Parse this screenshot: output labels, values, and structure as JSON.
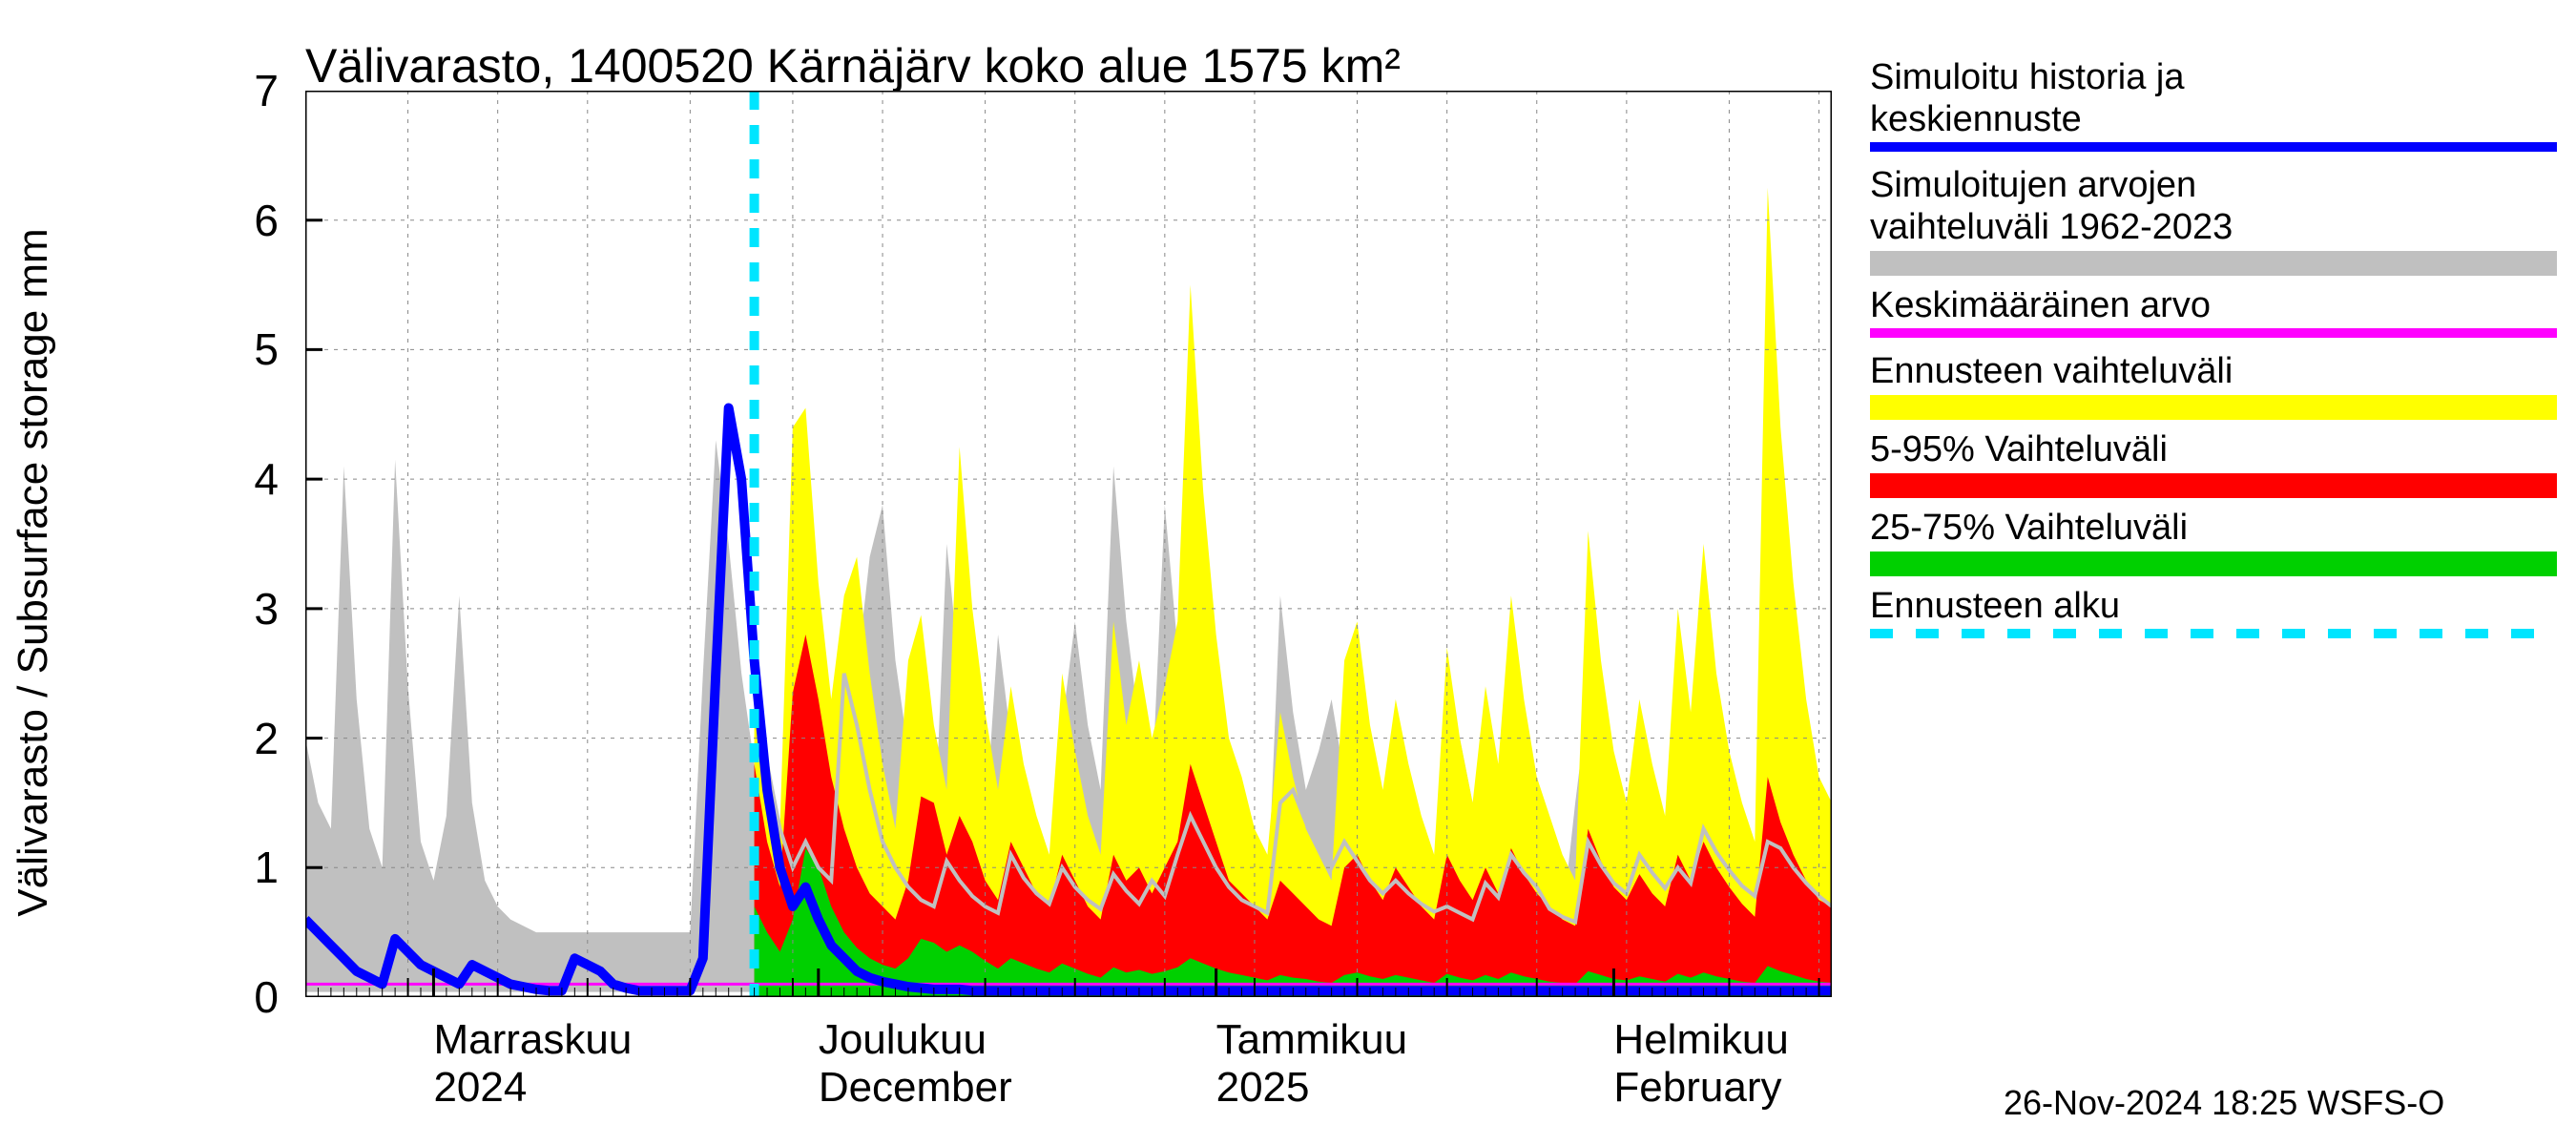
{
  "chart": {
    "type": "area-band-with-lines",
    "title": "Välivarasto, 1400520 Kärnäjärv koko alue 1575 km²",
    "ylabel": "Välivarasto / Subsurface storage  mm",
    "label_fontsize": 44,
    "title_fontsize": 50,
    "background_color": "#ffffff",
    "axis_color": "#000000",
    "grid_color": "#888888",
    "grid_dash": "4 6",
    "plot_border_width": 3,
    "ylim": [
      0,
      7
    ],
    "ytick_step": 1,
    "yticks": [
      0,
      1,
      2,
      3,
      4,
      5,
      6,
      7
    ],
    "x_axis": {
      "n_days": 120,
      "major_gridline_idx": [
        0,
        8,
        15,
        22,
        30,
        38,
        45,
        53,
        60,
        67,
        74,
        82,
        89,
        96,
        103,
        111,
        118
      ],
      "month_starts_idx": [
        10,
        40,
        71,
        102
      ],
      "month_labels": [
        {
          "line1": "Marraskuu",
          "line2": "2024"
        },
        {
          "line1": "Joulukuu",
          "line2": "December"
        },
        {
          "line1": "Tammikuu",
          "line2": "2025"
        },
        {
          "line1": "Helmikuu",
          "line2": "February"
        }
      ]
    },
    "forecast_start_idx": 35,
    "colors": {
      "history_forecast_line": "#0000ff",
      "history_range_band": "#c0c0c0",
      "mean_line": "#ff00ff",
      "forecast_full_band": "#ffff00",
      "p5_95_band": "#ff0000",
      "p25_75_band": "#00d000",
      "forecast_start_line": "#00e5ff"
    },
    "line_widths": {
      "history_forecast_line": 10,
      "mean_line": 3,
      "forecast_start_line": 10,
      "history_range_outline": 4
    },
    "series": {
      "historical_range_upper": [
        2.0,
        1.5,
        1.3,
        4.1,
        2.3,
        1.3,
        1.0,
        4.15,
        2.4,
        1.2,
        0.9,
        1.4,
        3.1,
        1.5,
        0.9,
        0.7,
        0.6,
        0.55,
        0.5,
        0.5,
        0.5,
        0.5,
        0.5,
        0.5,
        0.5,
        0.5,
        0.5,
        0.5,
        0.5,
        0.5,
        0.5,
        2.5,
        4.3,
        3.5,
        2.5,
        1.8,
        1.3,
        1.0,
        4.4,
        3.2,
        2.2,
        1.6,
        1.2,
        2.5,
        3.4,
        3.8,
        2.6,
        1.9,
        1.4,
        1.1,
        3.5,
        2.5,
        1.8,
        1.3,
        2.8,
        2.0,
        1.5,
        1.1,
        0.9,
        2.1,
        2.9,
        2.1,
        1.6,
        4.1,
        2.9,
        2.1,
        1.6,
        3.8,
        2.7,
        1.9,
        1.4,
        1.1,
        0.9,
        0.8,
        0.7,
        0.7,
        3.1,
        2.2,
        1.6,
        1.9,
        2.3,
        1.7,
        1.3,
        1.0,
        0.8,
        1.5,
        1.1,
        0.9,
        0.8,
        0.7,
        2.0,
        1.5,
        1.1,
        0.9,
        0.8,
        0.7,
        0.7,
        0.6,
        0.6,
        1.5,
        2.3,
        1.7,
        1.3,
        1.0,
        0.8,
        0.7,
        1.2,
        0.9,
        0.8,
        0.7,
        0.6,
        0.6,
        0.6,
        0.6,
        0.6,
        4.2,
        3.0,
        2.2,
        1.6,
        1.2
      ],
      "historical_range_lower_const": 0.04,
      "history_then_median": [
        0.6,
        0.5,
        0.4,
        0.3,
        0.2,
        0.15,
        0.1,
        0.45,
        0.35,
        0.25,
        0.2,
        0.15,
        0.1,
        0.25,
        0.2,
        0.15,
        0.1,
        0.08,
        0.06,
        0.05,
        0.05,
        0.3,
        0.25,
        0.2,
        0.1,
        0.07,
        0.05,
        0.05,
        0.05,
        0.05,
        0.05,
        0.3,
        2.5,
        4.55,
        4.0,
        2.6,
        1.6,
        1.0,
        0.7,
        0.85,
        0.6,
        0.4,
        0.3,
        0.2,
        0.15,
        0.12,
        0.1,
        0.08,
        0.07,
        0.06,
        0.06,
        0.06,
        0.05,
        0.05,
        0.05,
        0.05,
        0.05,
        0.05,
        0.05,
        0.05,
        0.05,
        0.05,
        0.05,
        0.05,
        0.05,
        0.05,
        0.05,
        0.05,
        0.05,
        0.05,
        0.05,
        0.05,
        0.05,
        0.05,
        0.05,
        0.05,
        0.05,
        0.05,
        0.05,
        0.05,
        0.05,
        0.05,
        0.05,
        0.05,
        0.05,
        0.05,
        0.05,
        0.05,
        0.05,
        0.05,
        0.05,
        0.05,
        0.05,
        0.05,
        0.05,
        0.05,
        0.05,
        0.05,
        0.05,
        0.05,
        0.05,
        0.05,
        0.05,
        0.05,
        0.05,
        0.05,
        0.05,
        0.05,
        0.05,
        0.05,
        0.05,
        0.05,
        0.05,
        0.05,
        0.05,
        0.05,
        0.05,
        0.05,
        0.05,
        0.05
      ],
      "mean_const": 0.1,
      "forecast_full_upper": [
        2.6,
        1.8,
        1.3,
        4.4,
        4.55,
        3.2,
        2.3,
        3.1,
        3.4,
        2.5,
        1.8,
        1.3,
        2.6,
        2.95,
        2.1,
        1.6,
        4.25,
        3.0,
        2.2,
        1.6,
        2.4,
        1.8,
        1.4,
        1.1,
        2.5,
        1.9,
        1.4,
        1.1,
        2.9,
        2.1,
        2.6,
        2.0,
        2.4,
        2.9,
        5.5,
        3.9,
        2.8,
        2.0,
        1.7,
        1.3,
        1.1,
        2.2,
        1.7,
        1.3,
        1.1,
        0.9,
        2.6,
        2.9,
        2.1,
        1.6,
        2.3,
        1.8,
        1.4,
        1.1,
        2.7,
        2.0,
        1.5,
        2.4,
        1.8,
        3.1,
        2.3,
        1.7,
        1.4,
        1.1,
        0.9,
        3.6,
        2.6,
        1.9,
        1.5,
        2.3,
        1.8,
        1.4,
        3.0,
        2.2,
        3.5,
        2.5,
        1.9,
        1.5,
        1.2,
        6.25,
        4.4,
        3.2,
        2.3,
        1.7,
        1.5
      ],
      "p5_95_upper": [
        1.8,
        1.2,
        0.85,
        2.35,
        2.8,
        2.3,
        1.7,
        1.3,
        1.0,
        0.8,
        0.7,
        0.6,
        0.9,
        1.55,
        1.5,
        1.1,
        1.4,
        1.2,
        0.9,
        0.75,
        1.2,
        1.0,
        0.8,
        0.7,
        1.1,
        0.9,
        0.7,
        0.6,
        1.1,
        0.9,
        1.0,
        0.8,
        1.0,
        1.2,
        1.8,
        1.5,
        1.2,
        0.9,
        0.8,
        0.7,
        0.6,
        0.9,
        0.8,
        0.7,
        0.6,
        0.55,
        1.0,
        1.1,
        0.9,
        0.75,
        1.0,
        0.85,
        0.7,
        0.6,
        1.1,
        0.9,
        0.75,
        1.0,
        0.8,
        1.15,
        0.95,
        0.8,
        0.7,
        0.6,
        0.55,
        1.3,
        1.05,
        0.85,
        0.75,
        0.95,
        0.8,
        0.7,
        1.1,
        0.9,
        1.2,
        1.0,
        0.85,
        0.72,
        0.62,
        1.7,
        1.35,
        1.1,
        0.9,
        0.75,
        0.7
      ],
      "p25_75_upper": [
        0.7,
        0.5,
        0.35,
        0.6,
        1.15,
        1.0,
        0.7,
        0.5,
        0.38,
        0.3,
        0.25,
        0.22,
        0.3,
        0.45,
        0.42,
        0.35,
        0.4,
        0.35,
        0.28,
        0.22,
        0.3,
        0.26,
        0.22,
        0.19,
        0.26,
        0.22,
        0.18,
        0.15,
        0.23,
        0.19,
        0.21,
        0.18,
        0.2,
        0.23,
        0.3,
        0.26,
        0.22,
        0.19,
        0.17,
        0.15,
        0.13,
        0.17,
        0.15,
        0.14,
        0.12,
        0.11,
        0.17,
        0.19,
        0.16,
        0.14,
        0.17,
        0.15,
        0.13,
        0.11,
        0.18,
        0.15,
        0.13,
        0.17,
        0.14,
        0.19,
        0.16,
        0.14,
        0.12,
        0.11,
        0.1,
        0.2,
        0.17,
        0.14,
        0.13,
        0.16,
        0.14,
        0.12,
        0.18,
        0.15,
        0.19,
        0.16,
        0.14,
        0.12,
        0.11,
        0.24,
        0.2,
        0.17,
        0.14,
        0.12,
        0.11
      ],
      "forecast_lower_const": 0.0,
      "history_range_outline_after_start": [
        2.6,
        1.8,
        1.3,
        1.0,
        1.2,
        1.0,
        0.9,
        2.5,
        2.1,
        1.6,
        1.2,
        1.0,
        0.85,
        0.75,
        0.7,
        1.05,
        0.9,
        0.78,
        0.7,
        0.65,
        1.1,
        0.92,
        0.8,
        0.72,
        1.0,
        0.85,
        0.75,
        0.68,
        0.95,
        0.82,
        0.72,
        0.9,
        0.78,
        1.1,
        1.4,
        1.2,
        1.0,
        0.85,
        0.75,
        0.7,
        0.65,
        1.5,
        1.6,
        1.35,
        1.15,
        1.0,
        1.2,
        1.05,
        0.9,
        0.8,
        0.9,
        0.8,
        0.72,
        0.66,
        0.7,
        0.65,
        0.6,
        0.88,
        0.77,
        1.1,
        0.96,
        0.85,
        0.68,
        0.62,
        0.58,
        1.2,
        1.02,
        0.88,
        0.8,
        1.1,
        0.96,
        0.84,
        1.0,
        0.88,
        1.3,
        1.12,
        0.98,
        0.86,
        0.78,
        1.2,
        1.15,
        1.0,
        0.88,
        0.78,
        0.7
      ]
    }
  },
  "legend": {
    "items": [
      {
        "kind": "line",
        "color": "#0000ff",
        "label_line1": "Simuloitu historia ja",
        "label_line2": "keskiennuste"
      },
      {
        "kind": "swatch",
        "color": "#c0c0c0",
        "label_line1": "Simuloitujen arvojen",
        "label_line2": "vaihteluväli 1962-2023"
      },
      {
        "kind": "line",
        "color": "#ff00ff",
        "label_line1": "Keskimääräinen arvo",
        "label_line2": ""
      },
      {
        "kind": "swatch",
        "color": "#ffff00",
        "label_line1": "Ennusteen vaihteluväli",
        "label_line2": ""
      },
      {
        "kind": "swatch",
        "color": "#ff0000",
        "label_line1": "5-95% Vaihteluväli",
        "label_line2": ""
      },
      {
        "kind": "swatch",
        "color": "#00d000",
        "label_line1": "25-75% Vaihteluväli",
        "label_line2": ""
      },
      {
        "kind": "dashed",
        "color": "#00e5ff",
        "label_line1": "Ennusteen alku",
        "label_line2": ""
      }
    ]
  },
  "footer": {
    "stamp": "26-Nov-2024 18:25 WSFS-O"
  }
}
